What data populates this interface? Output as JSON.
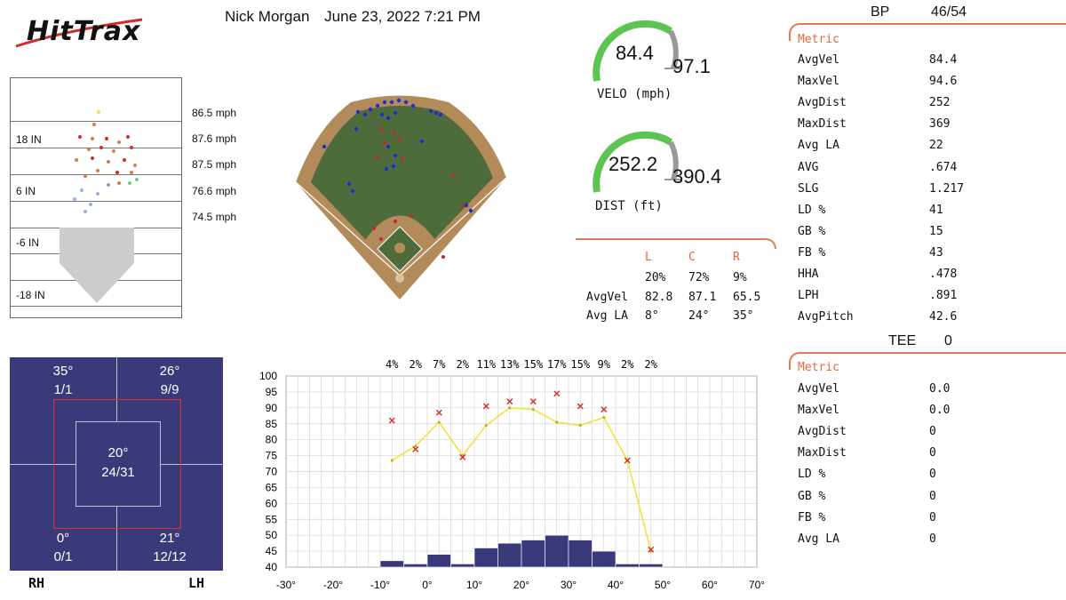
{
  "logo": {
    "text": "HitTrax"
  },
  "header": {
    "player": "Nick Morgan",
    "datetime": "June 23, 2022 7:21 PM"
  },
  "strike_zone": {
    "labels": [
      "18 IN",
      "6 IN",
      "-6 IN",
      "-18 IN"
    ],
    "speeds": [
      "86.5 mph",
      "87.6 mph",
      "87.5 mph",
      "76.6 mph",
      "74.5 mph"
    ]
  },
  "gauges": {
    "velo": {
      "value": "84.4",
      "max": "97.1",
      "label": "VELO (mph)",
      "fraction": 0.87,
      "color": "#5cc552"
    },
    "dist": {
      "value": "252.2",
      "max": "390.4",
      "label": "DIST (ft)",
      "fraction": 0.65,
      "color": "#5cc552"
    }
  },
  "lcr": {
    "headers": [
      "L",
      "C",
      "R"
    ],
    "pct": [
      "20%",
      "72%",
      "9%"
    ],
    "rows": [
      {
        "label": "AvgVel",
        "values": [
          "82.8",
          "87.1",
          "65.5"
        ]
      },
      {
        "label": "Avg LA",
        "values": [
          "8°",
          "24°",
          "35°"
        ]
      }
    ]
  },
  "bp": {
    "title": "BP",
    "count": "46/54",
    "metric_header": "Metric",
    "rows": [
      {
        "label": "AvgVel",
        "value": "84.4"
      },
      {
        "label": "MaxVel",
        "value": "94.6"
      },
      {
        "label": "AvgDist",
        "value": "252"
      },
      {
        "label": "MaxDist",
        "value": "369"
      },
      {
        "label": "Avg LA",
        "value": "22"
      },
      {
        "label": "AVG",
        "value": ".674"
      },
      {
        "label": "SLG",
        "value": "1.217"
      },
      {
        "label": "LD %",
        "value": "41"
      },
      {
        "label": "GB %",
        "value": "15"
      },
      {
        "label": "FB %",
        "value": "43"
      },
      {
        "label": "HHA",
        "value": ".478"
      },
      {
        "label": "LPH",
        "value": ".891"
      },
      {
        "label": "AvgPitch",
        "value": "42.6"
      }
    ]
  },
  "tee": {
    "title": "TEE",
    "count": "0",
    "metric_header": "Metric",
    "rows": [
      {
        "label": "AvgVel",
        "value": "0.0"
      },
      {
        "label": "MaxVel",
        "value": "0.0"
      },
      {
        "label": "AvgDist",
        "value": "0"
      },
      {
        "label": "MaxDist",
        "value": "0"
      },
      {
        "label": "LD %",
        "value": "0"
      },
      {
        "label": "GB %",
        "value": "0"
      },
      {
        "label": "FB %",
        "value": "0"
      },
      {
        "label": "Avg LA",
        "value": "0"
      }
    ]
  },
  "zone": {
    "top_left": {
      "angle": "35°",
      "count": "1/1"
    },
    "top_right": {
      "angle": "26°",
      "count": "9/9"
    },
    "center": {
      "angle": "20°",
      "count": "24/31"
    },
    "bottom_left": {
      "angle": "0°",
      "count": "0/1"
    },
    "bottom_right": {
      "angle": "21°",
      "count": "12/12"
    },
    "rh": "RH",
    "lh": "LH"
  },
  "chart_data": {
    "type": "bar",
    "x_ticks": [
      "-30°",
      "-20°",
      "-10°",
      "0°",
      "10°",
      "20°",
      "30°",
      "40°",
      "50°",
      "60°",
      "70°"
    ],
    "x_range": [
      -30,
      70
    ],
    "y_ticks": [
      40,
      45,
      50,
      55,
      60,
      65,
      70,
      75,
      80,
      85,
      90,
      95,
      100
    ],
    "ylim": [
      40,
      100
    ],
    "bins": [
      -10,
      -5,
      0,
      5,
      10,
      15,
      20,
      25,
      30,
      35,
      40,
      45
    ],
    "bin_width": 5,
    "percent_labels": [
      "4%",
      "2%",
      "7%",
      "2%",
      "11%",
      "13%",
      "15%",
      "17%",
      "15%",
      "9%",
      "2%",
      "2%"
    ],
    "bar_values": [
      42,
      41,
      44,
      41,
      46,
      47.5,
      48.5,
      50,
      48.5,
      45,
      41,
      41
    ],
    "avg_line": [
      [
        -7.5,
        73.5
      ],
      [
        -2.5,
        78
      ],
      [
        2.5,
        85.5
      ],
      [
        7.5,
        75
      ],
      [
        12.5,
        84.5
      ],
      [
        17.5,
        90
      ],
      [
        22.5,
        89.5
      ],
      [
        27.5,
        85.5
      ],
      [
        32.5,
        84.5
      ],
      [
        37.5,
        87
      ],
      [
        42.5,
        73.5
      ],
      [
        47.5,
        45
      ]
    ],
    "max_points": [
      [
        -7.5,
        86
      ],
      [
        -2.5,
        77
      ],
      [
        2.5,
        88.5
      ],
      [
        7.5,
        74.5
      ],
      [
        12.5,
        90.5
      ],
      [
        17.5,
        92
      ],
      [
        22.5,
        92
      ],
      [
        27.5,
        94.5
      ],
      [
        32.5,
        90.5
      ],
      [
        37.5,
        89.5
      ],
      [
        42.5,
        73.5
      ],
      [
        47.5,
        45.5
      ]
    ],
    "colors": {
      "bar": "#3a3a7a",
      "line": "#f5e13c",
      "marker": "#d42a2a"
    }
  }
}
